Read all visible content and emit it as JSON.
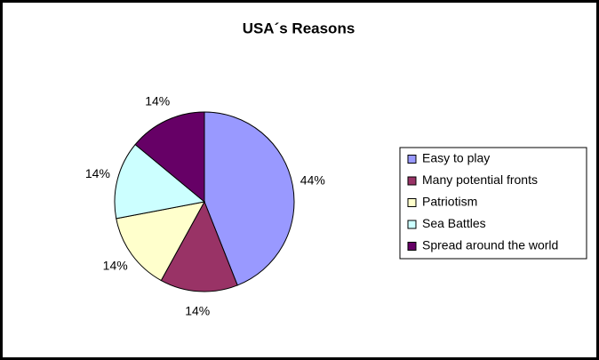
{
  "chart_data": {
    "type": "pie",
    "title": "USA´s Reasons",
    "categories": [
      "Easy to play",
      "Many potential fronts",
      "Patriotism",
      "Sea Battles",
      "Spread around the world"
    ],
    "values": [
      44,
      14,
      14,
      14,
      14
    ],
    "value_labels": [
      "44%",
      "14%",
      "14%",
      "14%",
      "14%"
    ],
    "colors": [
      "#9999ff",
      "#993366",
      "#ffffcc",
      "#ccffff",
      "#660066"
    ],
    "legend": "right"
  }
}
